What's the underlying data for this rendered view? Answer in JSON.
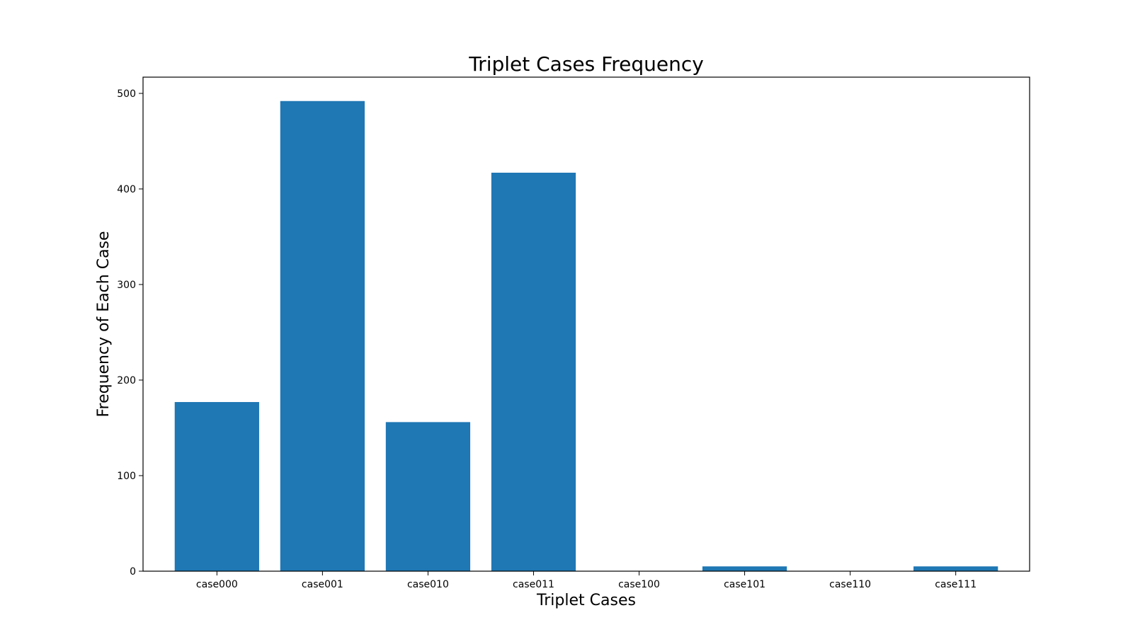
{
  "chart_data": {
    "type": "bar",
    "title": "Triplet Cases Frequency",
    "xlabel": "Triplet Cases",
    "ylabel": "Frequency of Each Case",
    "categories": [
      "case000",
      "case001",
      "case010",
      "case011",
      "case100",
      "case101",
      "case110",
      "case111"
    ],
    "values": [
      177,
      492,
      156,
      417,
      0,
      5,
      0,
      5
    ],
    "ylim": [
      0,
      517
    ],
    "yticks": [
      0,
      100,
      200,
      300,
      400,
      500
    ],
    "grid": false,
    "legend": "none",
    "bar_color": "#1f77b4"
  }
}
